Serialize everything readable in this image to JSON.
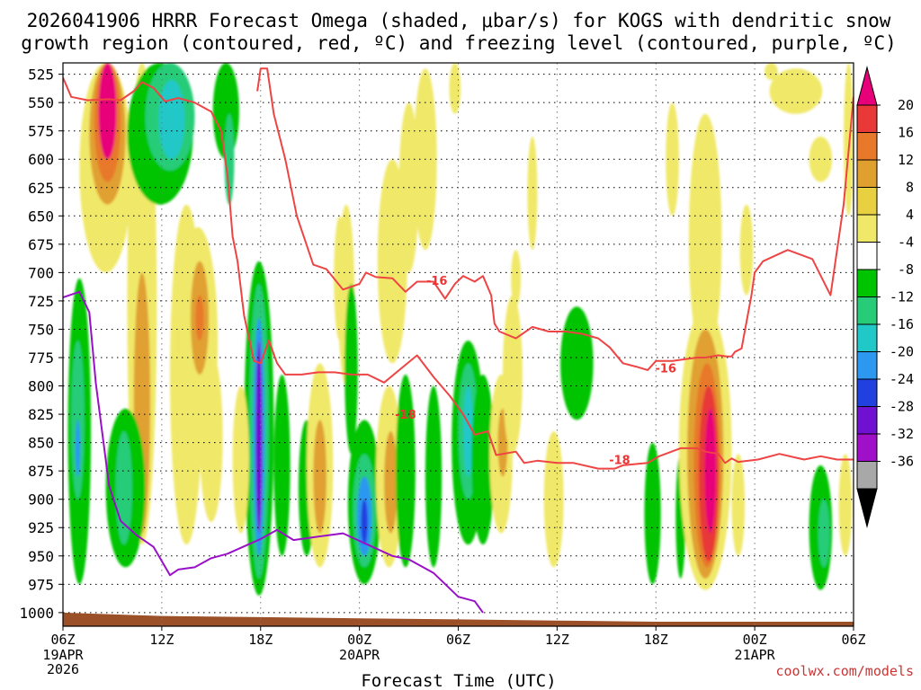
{
  "chart_data": {
    "type": "heatmap",
    "title_line1": "2026041906 HRRR Forecast Omega (shaded, μbar/s) for KOGS with dendritic snow",
    "title_line2": "growth region (contoured, red, ºC) and freezing level (contoured, purple, ºC)",
    "xlabel": "Forecast Time (UTC)",
    "credit": "coolwx.com/models",
    "x_ticks": [
      "06Z",
      "12Z",
      "18Z",
      "00Z",
      "06Z",
      "12Z",
      "18Z",
      "00Z",
      "06Z"
    ],
    "x_ticks_hours": [
      0,
      6,
      12,
      18,
      24,
      30,
      36,
      42,
      48
    ],
    "x_date_labels": [
      {
        "hour": 0,
        "lines": [
          "19APR",
          "2026"
        ]
      },
      {
        "hour": 18,
        "lines": [
          "20APR"
        ]
      },
      {
        "hour": 42,
        "lines": [
          "21APR"
        ]
      }
    ],
    "y_ticks": [
      525,
      550,
      575,
      600,
      625,
      650,
      675,
      700,
      725,
      750,
      775,
      800,
      825,
      850,
      875,
      900,
      925,
      950,
      975,
      1000
    ],
    "ylim_top": 515,
    "ylim_bottom": 1012,
    "x_range_hours": [
      0,
      48
    ],
    "grid": true,
    "colorbar": {
      "ticks": [
        "20",
        "16",
        "12",
        "8",
        "4",
        "-4",
        "-8",
        "-12",
        "-16",
        "-20",
        "-24",
        "-28",
        "-32",
        "-36"
      ],
      "colors": [
        "#e8007a",
        "#e83838",
        "#e8782a",
        "#e0a030",
        "#e8d040",
        "#f0e868",
        "#ffffff",
        "#00c400",
        "#28cc78",
        "#20c8c8",
        "#2c98f0",
        "#2040e0",
        "#7010d0",
        "#a010c8",
        "#a8a8a8",
        "#000000"
      ]
    },
    "dgz_contours": [
      {
        "label": "-18",
        "hours": [
          0,
          0.5,
          1.5,
          2.8,
          3.5,
          4.3,
          4.8,
          5.5,
          6.2,
          7.0,
          8.0,
          9.0,
          9.6,
          10.0,
          10.3,
          10.6,
          11.0,
          11.6,
          12.0,
          12.5,
          13.0,
          13.5,
          14.0,
          14.5,
          15.5,
          16.5,
          17.5,
          18.5,
          19.5,
          20.5,
          21.5,
          22.5,
          23.5,
          24.3,
          25.0,
          25.8,
          26.3,
          27.5,
          28.0,
          28.8,
          30.0,
          31.0,
          32.5,
          33.5,
          34.0,
          35.5,
          36.2,
          37.5,
          38.5,
          39.0,
          39.8,
          40.2,
          40.6,
          41.0,
          42.2,
          43.5,
          45.0,
          46.0,
          47.0,
          48.0
        ],
        "p": [
          528,
          545,
          548,
          547,
          548,
          540,
          532,
          537,
          549,
          546,
          550,
          558,
          575,
          615,
          668,
          690,
          738,
          778,
          780,
          760,
          780,
          790,
          790,
          790,
          788,
          788,
          790,
          790,
          797,
          785,
          773,
          792,
          809,
          825,
          843,
          840,
          861,
          858,
          868,
          866,
          868,
          868,
          873,
          873,
          870,
          868,
          862,
          855,
          855,
          858,
          860,
          868,
          864,
          867,
          865,
          860,
          865,
          862,
          865,
          865
        ]
      },
      {
        "label": "-16",
        "hours": [
          11.8,
          12.0,
          12.4,
          12.8,
          13.5,
          14.2,
          15.2,
          16.0,
          17.0,
          18.0,
          18.4,
          19.0,
          20.0,
          20.8,
          21.5,
          22.5,
          23.2,
          23.8,
          24.3,
          25.0,
          25.5,
          26.0,
          26.2,
          26.5,
          27.5,
          28.5,
          29.5,
          30.5,
          31.5,
          32.5,
          33.2,
          34.0,
          34.8,
          35.5,
          36.0,
          37.0,
          38.5,
          39.0,
          39.8,
          40.3,
          40.6,
          40.8,
          41.2,
          41.8,
          42.0,
          42.5,
          44.0,
          45.5,
          46.6,
          47.4,
          48.0
        ],
        "p": [
          540,
          520,
          520,
          560,
          600,
          650,
          693,
          697,
          715,
          710,
          700,
          704,
          705,
          717,
          708,
          708,
          723,
          710,
          703,
          708,
          703,
          720,
          745,
          752,
          758,
          748,
          752,
          752,
          754,
          758,
          766,
          780,
          783,
          786,
          778,
          778,
          775,
          775,
          773,
          774,
          774,
          770,
          767,
          720,
          700,
          690,
          680,
          688,
          720,
          640,
          545
        ]
      }
    ],
    "freezing_level": {
      "hours": [
        0,
        1.0,
        1.6,
        2.0,
        2.8,
        3.5,
        4.5,
        5.5,
        6.5,
        7.0,
        8.0,
        9.0,
        10.0,
        12.0,
        13.0,
        14.0,
        15.5,
        17.0,
        18.5,
        20.0,
        21.0,
        22.5,
        24.0,
        25.0,
        25.5
      ],
      "p": [
        722,
        717,
        735,
        798,
        888,
        919,
        932,
        942,
        967,
        962,
        960,
        952,
        948,
        935,
        927,
        936,
        933,
        930,
        940,
        950,
        953,
        965,
        986,
        990,
        1000
      ]
    }
  }
}
